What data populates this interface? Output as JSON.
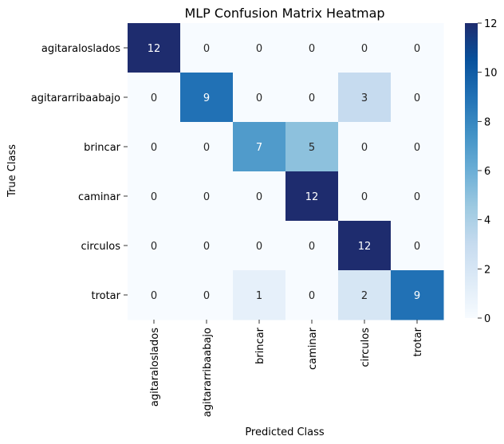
{
  "chart_data": {
    "type": "heatmap",
    "title": "MLP Confusion Matrix Heatmap",
    "xlabel": "Predicted Class",
    "ylabel": "True Class",
    "x_categories": [
      "agitaraloslados",
      "agitararribaabajo",
      "brincar",
      "caminar",
      "circulos",
      "trotar"
    ],
    "y_categories": [
      "agitaraloslados",
      "agitararribaabajo",
      "brincar",
      "caminar",
      "circulos",
      "trotar"
    ],
    "values": [
      [
        12,
        0,
        0,
        0,
        0,
        0
      ],
      [
        0,
        9,
        0,
        0,
        3,
        0
      ],
      [
        0,
        0,
        7,
        5,
        0,
        0
      ],
      [
        0,
        0,
        0,
        12,
        0,
        0
      ],
      [
        0,
        0,
        0,
        0,
        12,
        0
      ],
      [
        0,
        0,
        1,
        0,
        2,
        9
      ]
    ],
    "colorbar": {
      "min": 0,
      "max": 12,
      "ticks": [
        0,
        2,
        4,
        6,
        8,
        10,
        12
      ]
    },
    "colormap": "Blues",
    "annotations": true,
    "grid": false
  }
}
